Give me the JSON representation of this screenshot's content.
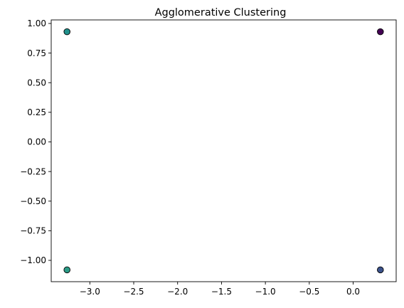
{
  "chart_data": {
    "type": "scatter",
    "title": "Agglomerative Clustering",
    "xlabel": "",
    "ylabel": "",
    "xlim": [
      -3.44,
      0.49
    ],
    "ylim": [
      -1.18,
      1.03
    ],
    "x_ticks": [
      -3.0,
      -2.5,
      -2.0,
      -1.5,
      -1.0,
      -0.5,
      0.0
    ],
    "x_tick_labels": [
      "−3.0",
      "−2.5",
      "−2.0",
      "−1.5",
      "−1.0",
      "−0.5",
      "0.0"
    ],
    "y_ticks": [
      1.0,
      0.75,
      0.5,
      0.25,
      0.0,
      -0.25,
      -0.5,
      -0.75,
      -1.0
    ],
    "y_tick_labels": [
      "1.00",
      "0.75",
      "0.50",
      "0.25",
      "0.00",
      "−0.25",
      "−0.50",
      "−0.75",
      "−1.00"
    ],
    "grid": false,
    "legend": "none",
    "edge_color": "#000000",
    "points": [
      {
        "x": -3.26,
        "y": 0.93,
        "color": "#21918c"
      },
      {
        "x": -3.26,
        "y": -1.08,
        "color": "#2a9b86"
      },
      {
        "x": 0.31,
        "y": 0.93,
        "color": "#440154"
      },
      {
        "x": 0.31,
        "y": -1.08,
        "color": "#3b528b"
      }
    ]
  }
}
